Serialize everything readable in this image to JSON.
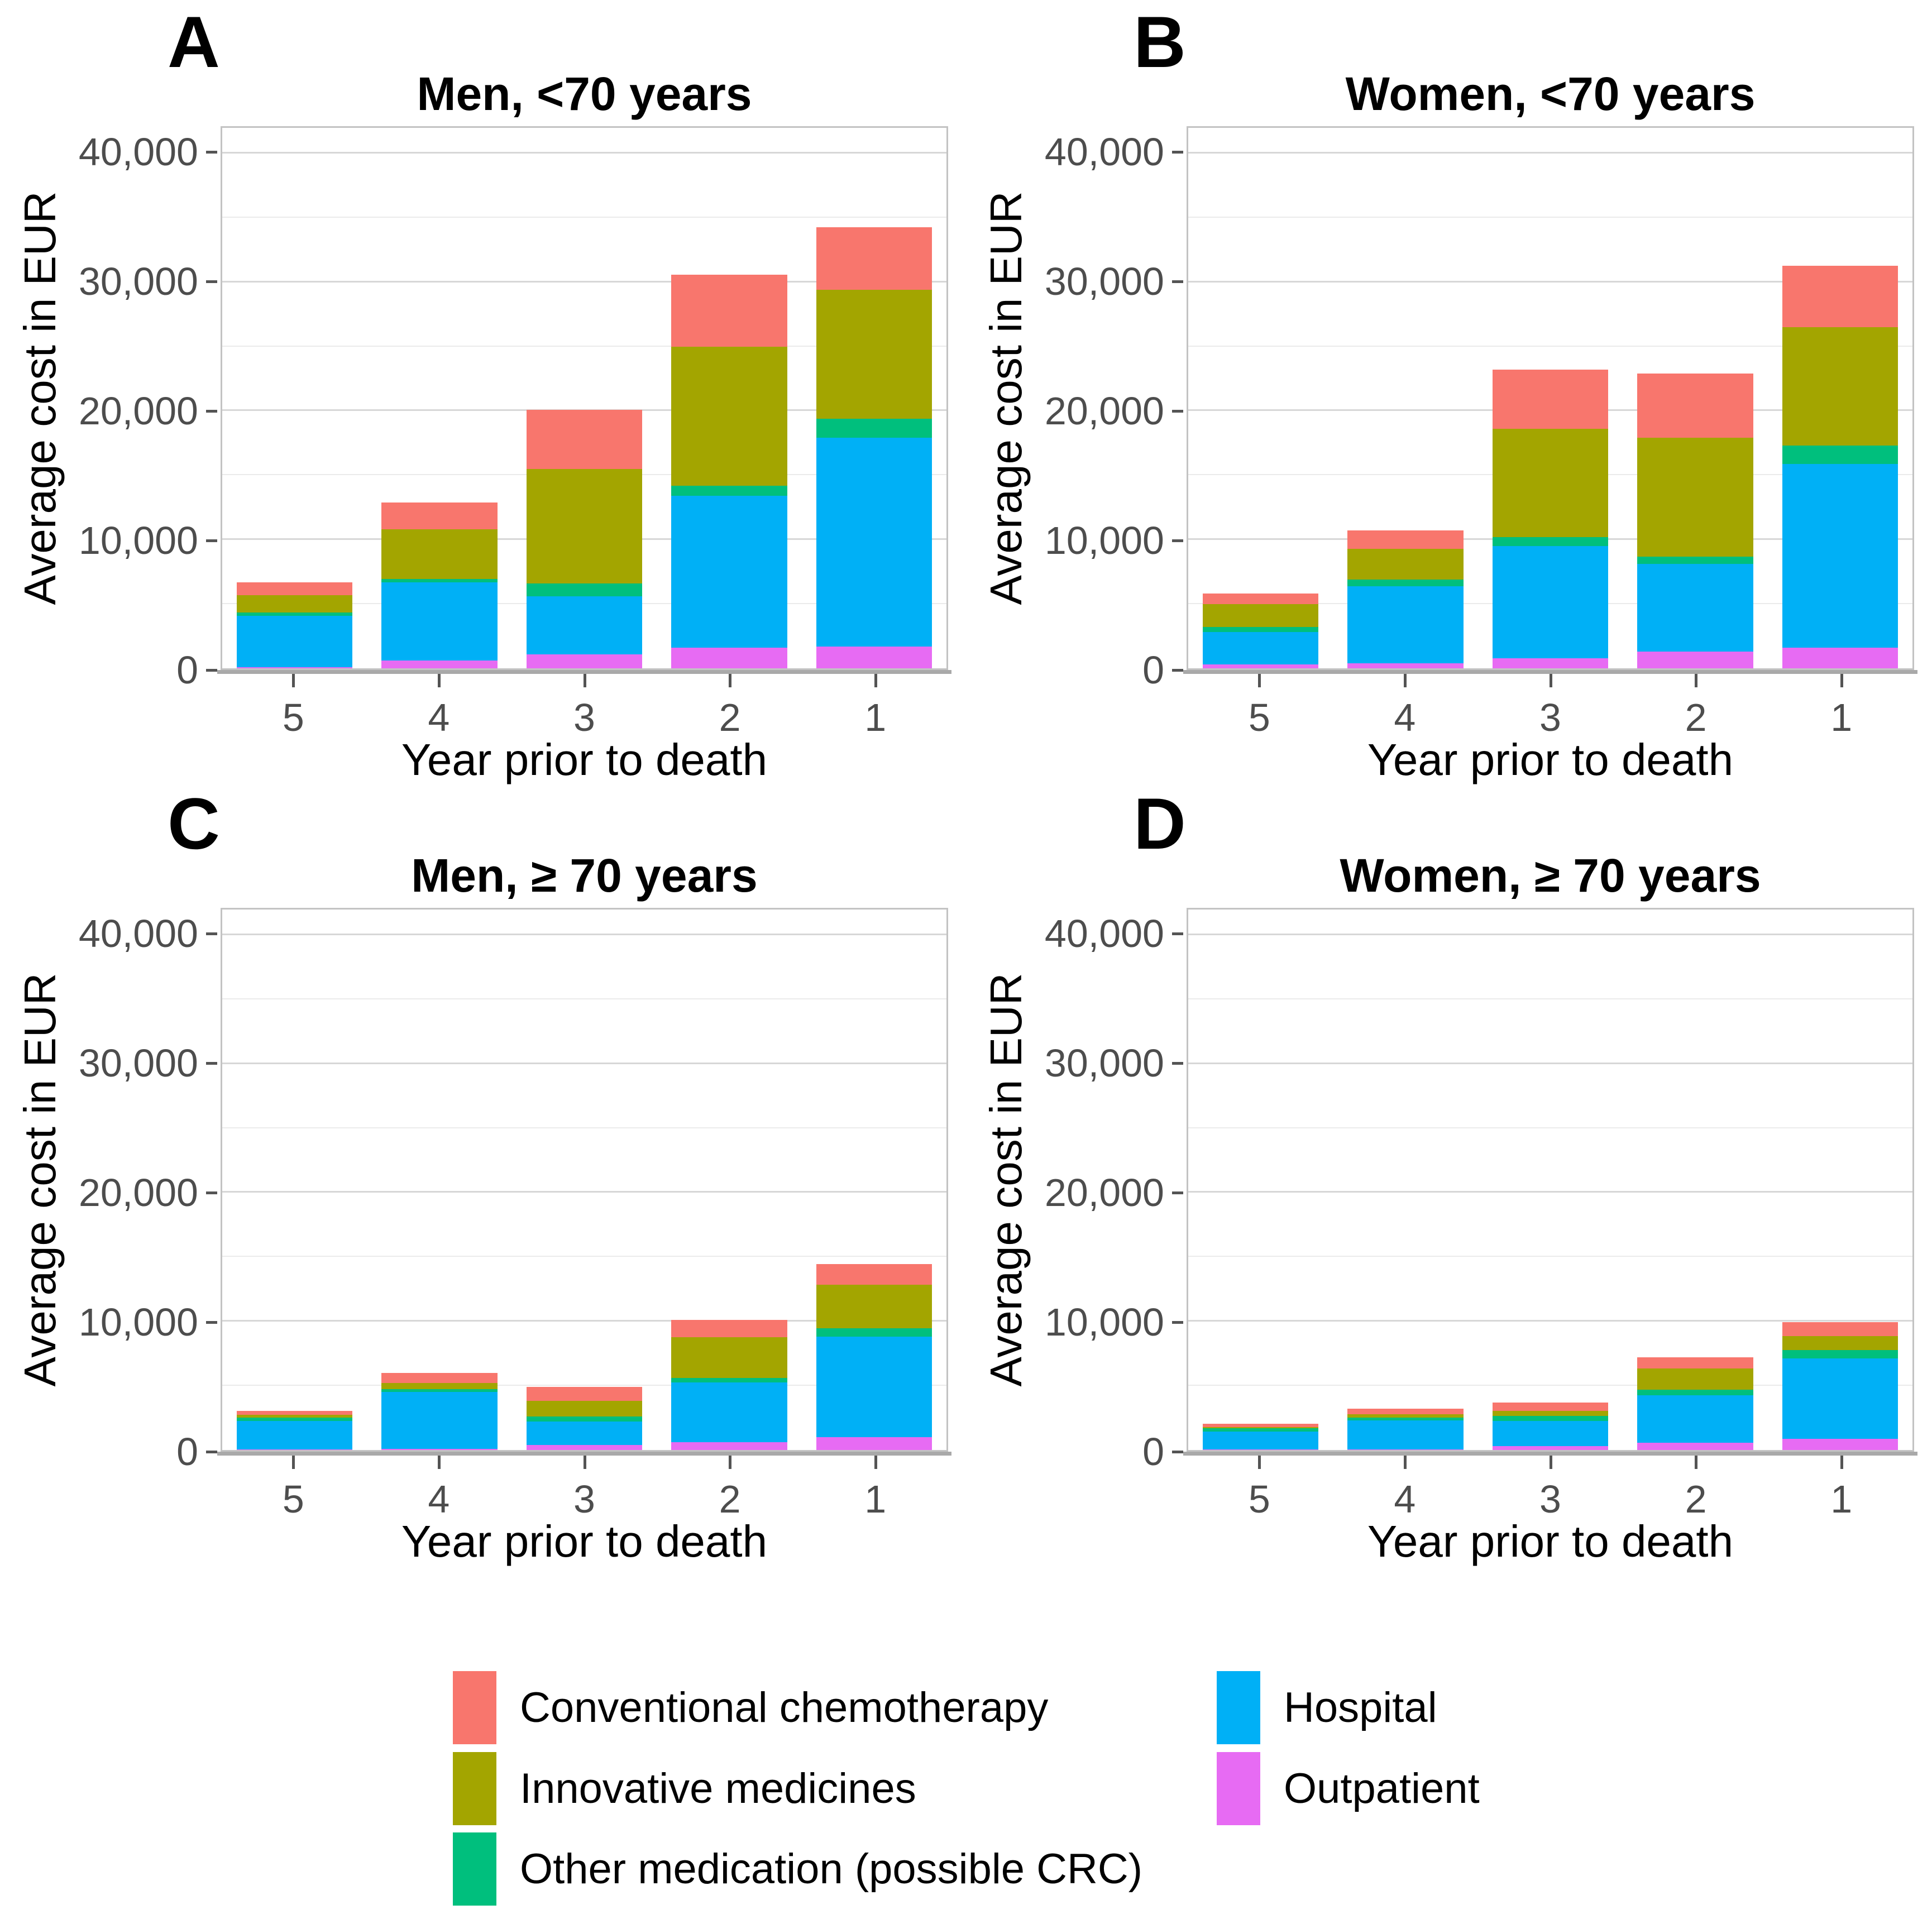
{
  "figure": {
    "background": "#ffffff"
  },
  "axes": {
    "y_label": "Average cost in EUR",
    "x_label": "Year prior to death",
    "y_display_max": 42000,
    "y_ticks": [
      {
        "value": 0,
        "label": "0"
      },
      {
        "value": 10000,
        "label": "10,000"
      },
      {
        "value": 20000,
        "label": "20,000"
      },
      {
        "value": 30000,
        "label": "30,000"
      },
      {
        "value": 40000,
        "label": "40,000"
      }
    ],
    "y_minor_ticks": [
      5000,
      15000,
      25000,
      35000
    ],
    "x_ticks": [
      "5",
      "4",
      "3",
      "2",
      "1"
    ]
  },
  "panels": [
    {
      "letter": "A"
    },
    {
      "letter": "B"
    },
    {
      "letter": "C"
    },
    {
      "letter": "D"
    }
  ],
  "chart_data": [
    {
      "panel": "A",
      "type": "bar",
      "stacked": true,
      "title": "Men, <70 years",
      "xlabel": "Year prior to death",
      "ylabel": "Average cost in EUR",
      "ylim": [
        0,
        40000
      ],
      "grid": true,
      "categories": [
        "5",
        "4",
        "3",
        "2",
        "1"
      ],
      "series": [
        {
          "name": "Outpatient",
          "color": "#E76BF3",
          "values": [
            100,
            600,
            1100,
            1600,
            1700
          ]
        },
        {
          "name": "Hospital",
          "color": "#00B0F6",
          "values": [
            4000,
            6100,
            4500,
            11800,
            16200
          ]
        },
        {
          "name": "Other medication (possible CRC)",
          "color": "#00BF7D",
          "values": [
            250,
            250,
            1000,
            800,
            1500
          ]
        },
        {
          "name": "Innovative medicines",
          "color": "#A3A500",
          "values": [
            1350,
            3850,
            8900,
            10800,
            10000
          ]
        },
        {
          "name": "Conventional chemotherapy",
          "color": "#F8766D",
          "values": [
            1000,
            2100,
            4600,
            5600,
            4900
          ]
        }
      ],
      "totals": [
        6700,
        12900,
        20100,
        30600,
        34300
      ]
    },
    {
      "panel": "B",
      "type": "bar",
      "stacked": true,
      "title": "Women, <70 years",
      "xlabel": "Year prior to death",
      "ylabel": "Average cost in EUR",
      "ylim": [
        0,
        40000
      ],
      "grid": true,
      "categories": [
        "5",
        "4",
        "3",
        "2",
        "1"
      ],
      "series": [
        {
          "name": "Outpatient",
          "color": "#E76BF3",
          "values": [
            300,
            400,
            800,
            1300,
            1600
          ]
        },
        {
          "name": "Hospital",
          "color": "#00B0F6",
          "values": [
            2500,
            6000,
            8700,
            6800,
            14300
          ]
        },
        {
          "name": "Other medication (possible CRC)",
          "color": "#00BF7D",
          "values": [
            400,
            500,
            700,
            600,
            1400
          ]
        },
        {
          "name": "Innovative medicines",
          "color": "#A3A500",
          "values": [
            1800,
            2400,
            8400,
            9200,
            9200
          ]
        },
        {
          "name": "Conventional chemotherapy",
          "color": "#F8766D",
          "values": [
            800,
            1400,
            4600,
            5000,
            4800
          ]
        }
      ],
      "totals": [
        5800,
        10700,
        23200,
        22900,
        31300
      ]
    },
    {
      "panel": "C",
      "type": "bar",
      "stacked": true,
      "title": "Men, ≥ 70 years",
      "xlabel": "Year prior to death",
      "ylabel": "Average cost in EUR",
      "ylim": [
        0,
        40000
      ],
      "grid": true,
      "categories": [
        "5",
        "4",
        "3",
        "2",
        "1"
      ],
      "series": [
        {
          "name": "Outpatient",
          "color": "#E76BF3",
          "values": [
            50,
            100,
            400,
            600,
            1000
          ]
        },
        {
          "name": "Hospital",
          "color": "#00B0F6",
          "values": [
            2200,
            4400,
            1800,
            4650,
            7800
          ]
        },
        {
          "name": "Other medication (possible CRC)",
          "color": "#00BF7D",
          "values": [
            250,
            250,
            400,
            350,
            650
          ]
        },
        {
          "name": "Innovative medicines",
          "color": "#A3A500",
          "values": [
            250,
            450,
            1200,
            3150,
            3400
          ]
        },
        {
          "name": "Conventional chemotherapy",
          "color": "#F8766D",
          "values": [
            300,
            800,
            1100,
            1350,
            1600
          ]
        }
      ],
      "totals": [
        3050,
        6000,
        4900,
        10100,
        14450
      ]
    },
    {
      "panel": "D",
      "type": "bar",
      "stacked": true,
      "title": "Women, ≥ 70 years",
      "xlabel": "Year prior to death",
      "ylabel": "Average cost in EUR",
      "ylim": [
        0,
        40000
      ],
      "grid": true,
      "categories": [
        "5",
        "4",
        "3",
        "2",
        "1"
      ],
      "series": [
        {
          "name": "Outpatient",
          "color": "#E76BF3",
          "values": [
            50,
            50,
            300,
            550,
            850
          ]
        },
        {
          "name": "Hospital",
          "color": "#00B0F6",
          "values": [
            1400,
            2250,
            1950,
            3700,
            6250
          ]
        },
        {
          "name": "Other medication (possible CRC)",
          "color": "#00BF7D",
          "values": [
            250,
            200,
            400,
            450,
            650
          ]
        },
        {
          "name": "Innovative medicines",
          "color": "#A3A500",
          "values": [
            100,
            300,
            400,
            1650,
            1100
          ]
        },
        {
          "name": "Conventional chemotherapy",
          "color": "#F8766D",
          "values": [
            250,
            400,
            650,
            850,
            1100
          ]
        }
      ],
      "totals": [
        2050,
        3200,
        3700,
        7200,
        9950
      ]
    }
  ],
  "legend": {
    "position": "bottom",
    "items": [
      {
        "label": "Conventional chemotherapy",
        "color": "#F8766D"
      },
      {
        "label": "Innovative medicines",
        "color": "#A3A500"
      },
      {
        "label": "Other medication (possible CRC)",
        "color": "#00BF7D"
      },
      {
        "label": "Hospital",
        "color": "#00B0F6"
      },
      {
        "label": "Outpatient",
        "color": "#E76BF3"
      }
    ]
  }
}
